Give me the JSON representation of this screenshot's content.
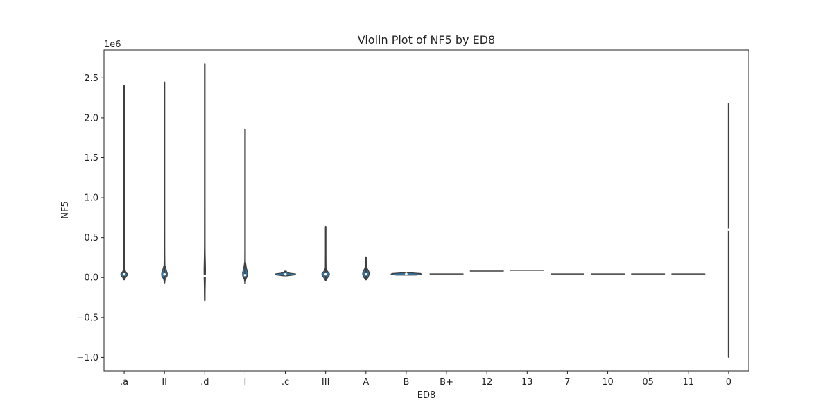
{
  "chart_data": {
    "type": "violin",
    "title": "Violin Plot of NF5 by ED8",
    "xlabel": "ED8",
    "ylabel": "NF5",
    "y_scale_label": "1e6",
    "ylim": [
      -1.17,
      2.85
    ],
    "y_ticks": [
      -1.0,
      -0.5,
      0.0,
      0.5,
      1.0,
      1.5,
      2.0,
      2.5
    ],
    "y_tick_labels": [
      "−1.0",
      "−0.5",
      "0.0",
      "0.5",
      "1.0",
      "1.5",
      "2.0",
      "2.5"
    ],
    "categories": [
      ".a",
      "II",
      ".d",
      "I",
      ".c",
      "III",
      "A",
      "B",
      "B+",
      "12",
      "13",
      "7",
      "10",
      "05",
      "11",
      "0"
    ],
    "violins": [
      {
        "category": ".a",
        "min": -0.03,
        "max": 2.41,
        "median": 0.04,
        "profile": [
          [
            -0.03,
            0.01
          ],
          [
            0.0,
            0.09
          ],
          [
            0.03,
            0.19
          ],
          [
            0.045,
            0.2
          ],
          [
            0.06,
            0.12
          ],
          [
            0.1,
            0.04
          ],
          [
            0.2,
            0.015
          ],
          [
            0.5,
            0.006
          ],
          [
            1.0,
            0.004
          ],
          [
            2.41,
            0.002
          ]
        ]
      },
      {
        "category": "II",
        "min": -0.07,
        "max": 2.45,
        "median": 0.04,
        "profile": [
          [
            -0.07,
            0.005
          ],
          [
            -0.02,
            0.05
          ],
          [
            0.02,
            0.16
          ],
          [
            0.05,
            0.17
          ],
          [
            0.1,
            0.1
          ],
          [
            0.15,
            0.03
          ],
          [
            0.3,
            0.012
          ],
          [
            1.0,
            0.004
          ],
          [
            2.45,
            0.002
          ]
        ]
      },
      {
        "category": ".d",
        "min": -0.29,
        "max": 2.68,
        "median": 0.02,
        "profile": [
          [
            -0.29,
            0.01
          ],
          [
            -0.15,
            0.025
          ],
          [
            0.0,
            0.04
          ],
          [
            0.1,
            0.045
          ],
          [
            0.25,
            0.03
          ],
          [
            0.4,
            0.012
          ],
          [
            1.0,
            0.005
          ],
          [
            2.68,
            0.002
          ]
        ]
      },
      {
        "category": "I",
        "min": -0.08,
        "max": 1.86,
        "median": 0.03,
        "profile": [
          [
            -0.08,
            0.005
          ],
          [
            -0.02,
            0.05
          ],
          [
            0.02,
            0.14
          ],
          [
            0.06,
            0.15
          ],
          [
            0.12,
            0.08
          ],
          [
            0.2,
            0.02
          ],
          [
            0.5,
            0.008
          ],
          [
            1.86,
            0.002
          ]
        ]
      },
      {
        "category": ".c",
        "min": 0.02,
        "max": 0.08,
        "median": 0.04,
        "profile": [
          [
            0.02,
            0.1
          ],
          [
            0.035,
            0.6
          ],
          [
            0.045,
            0.6
          ],
          [
            0.055,
            0.25
          ],
          [
            0.065,
            0.1
          ],
          [
            0.08,
            0.05
          ]
        ]
      },
      {
        "category": "III",
        "min": -0.04,
        "max": 0.64,
        "median": 0.04,
        "profile": [
          [
            -0.04,
            0.01
          ],
          [
            0.0,
            0.12
          ],
          [
            0.03,
            0.22
          ],
          [
            0.05,
            0.22
          ],
          [
            0.08,
            0.1
          ],
          [
            0.12,
            0.02
          ],
          [
            0.3,
            0.007
          ],
          [
            0.64,
            0.002
          ]
        ]
      },
      {
        "category": "A",
        "min": -0.03,
        "max": 0.26,
        "median": 0.04,
        "profile": [
          [
            -0.03,
            0.02
          ],
          [
            0.0,
            0.12
          ],
          [
            0.04,
            0.2
          ],
          [
            0.07,
            0.18
          ],
          [
            0.12,
            0.06
          ],
          [
            0.18,
            0.02
          ],
          [
            0.26,
            0.004
          ]
        ]
      },
      {
        "category": "B",
        "min": 0.03,
        "max": 0.06,
        "median": 0.045,
        "profile": [
          [
            0.03,
            0.6
          ],
          [
            0.04,
            0.9
          ],
          [
            0.05,
            0.85
          ],
          [
            0.06,
            0.2
          ]
        ]
      },
      {
        "category": "B+",
        "min": 0.045,
        "max": 0.045,
        "median": 0.045,
        "profile": []
      },
      {
        "category": "12",
        "min": 0.08,
        "max": 0.08,
        "median": 0.08,
        "profile": []
      },
      {
        "category": "13",
        "min": 0.09,
        "max": 0.09,
        "median": 0.09,
        "profile": []
      },
      {
        "category": "7",
        "min": 0.045,
        "max": 0.045,
        "median": 0.045,
        "profile": []
      },
      {
        "category": "10",
        "min": 0.045,
        "max": 0.045,
        "median": 0.045,
        "profile": []
      },
      {
        "category": "05",
        "min": 0.045,
        "max": 0.045,
        "median": 0.045,
        "profile": []
      },
      {
        "category": "11",
        "min": 0.045,
        "max": 0.045,
        "median": 0.045,
        "profile": []
      },
      {
        "category": "0",
        "min": -1.0,
        "max": 2.18,
        "median": 0.6,
        "profile": [
          [
            -1.0,
            0.004
          ],
          [
            0.6,
            0.006
          ],
          [
            2.18,
            0.004
          ]
        ]
      }
    ],
    "fill_color": "#3274a1",
    "line_color": "#3f3f3f",
    "grid": false,
    "legend": "none"
  }
}
